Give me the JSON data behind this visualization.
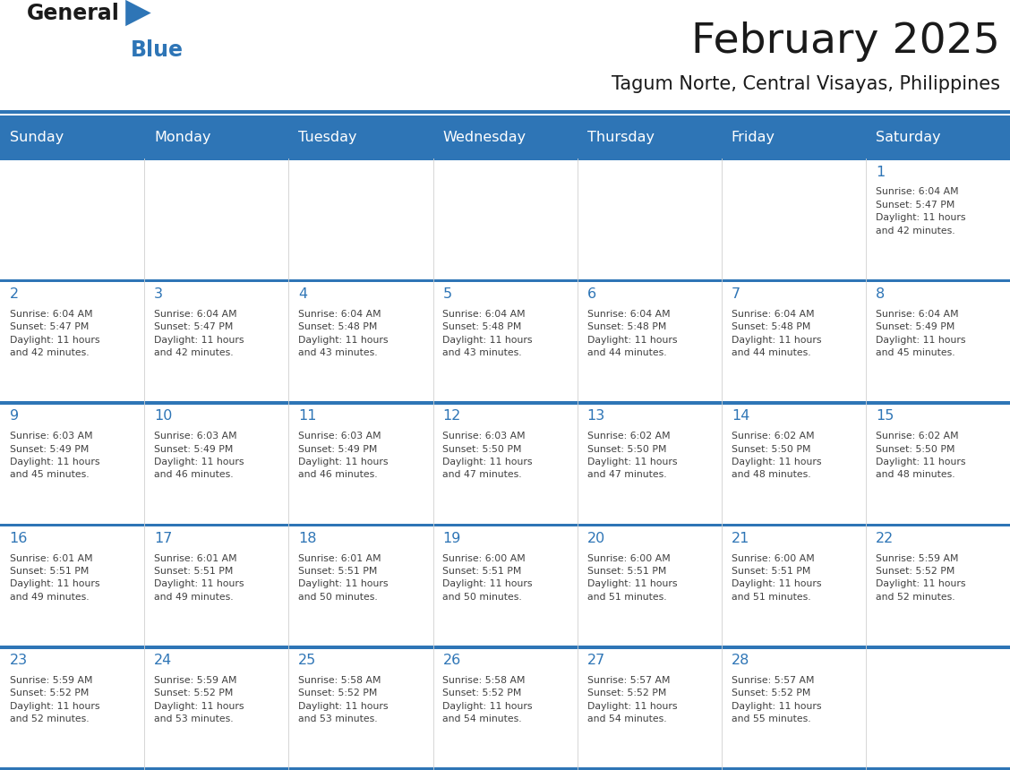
{
  "title": "February 2025",
  "subtitle": "Tagum Norte, Central Visayas, Philippines",
  "days_of_week": [
    "Sunday",
    "Monday",
    "Tuesday",
    "Wednesday",
    "Thursday",
    "Friday",
    "Saturday"
  ],
  "header_bg": "#2E75B6",
  "header_text": "#FFFFFF",
  "cell_border": "#2E75B6",
  "day_number_color": "#2E75B6",
  "info_text_color": "#404040",
  "title_color": "#1A1A1A",
  "subtitle_color": "#1A1A1A",
  "logo_general_color": "#1A1A1A",
  "logo_blue_color": "#2E75B6",
  "logo_triangle_color": "#2E75B6",
  "calendar_data": [
    [
      {
        "day": null,
        "info": null
      },
      {
        "day": null,
        "info": null
      },
      {
        "day": null,
        "info": null
      },
      {
        "day": null,
        "info": null
      },
      {
        "day": null,
        "info": null
      },
      {
        "day": null,
        "info": null
      },
      {
        "day": 1,
        "info": "Sunrise: 6:04 AM\nSunset: 5:47 PM\nDaylight: 11 hours\nand 42 minutes."
      }
    ],
    [
      {
        "day": 2,
        "info": "Sunrise: 6:04 AM\nSunset: 5:47 PM\nDaylight: 11 hours\nand 42 minutes."
      },
      {
        "day": 3,
        "info": "Sunrise: 6:04 AM\nSunset: 5:47 PM\nDaylight: 11 hours\nand 42 minutes."
      },
      {
        "day": 4,
        "info": "Sunrise: 6:04 AM\nSunset: 5:48 PM\nDaylight: 11 hours\nand 43 minutes."
      },
      {
        "day": 5,
        "info": "Sunrise: 6:04 AM\nSunset: 5:48 PM\nDaylight: 11 hours\nand 43 minutes."
      },
      {
        "day": 6,
        "info": "Sunrise: 6:04 AM\nSunset: 5:48 PM\nDaylight: 11 hours\nand 44 minutes."
      },
      {
        "day": 7,
        "info": "Sunrise: 6:04 AM\nSunset: 5:48 PM\nDaylight: 11 hours\nand 44 minutes."
      },
      {
        "day": 8,
        "info": "Sunrise: 6:04 AM\nSunset: 5:49 PM\nDaylight: 11 hours\nand 45 minutes."
      }
    ],
    [
      {
        "day": 9,
        "info": "Sunrise: 6:03 AM\nSunset: 5:49 PM\nDaylight: 11 hours\nand 45 minutes."
      },
      {
        "day": 10,
        "info": "Sunrise: 6:03 AM\nSunset: 5:49 PM\nDaylight: 11 hours\nand 46 minutes."
      },
      {
        "day": 11,
        "info": "Sunrise: 6:03 AM\nSunset: 5:49 PM\nDaylight: 11 hours\nand 46 minutes."
      },
      {
        "day": 12,
        "info": "Sunrise: 6:03 AM\nSunset: 5:50 PM\nDaylight: 11 hours\nand 47 minutes."
      },
      {
        "day": 13,
        "info": "Sunrise: 6:02 AM\nSunset: 5:50 PM\nDaylight: 11 hours\nand 47 minutes."
      },
      {
        "day": 14,
        "info": "Sunrise: 6:02 AM\nSunset: 5:50 PM\nDaylight: 11 hours\nand 48 minutes."
      },
      {
        "day": 15,
        "info": "Sunrise: 6:02 AM\nSunset: 5:50 PM\nDaylight: 11 hours\nand 48 minutes."
      }
    ],
    [
      {
        "day": 16,
        "info": "Sunrise: 6:01 AM\nSunset: 5:51 PM\nDaylight: 11 hours\nand 49 minutes."
      },
      {
        "day": 17,
        "info": "Sunrise: 6:01 AM\nSunset: 5:51 PM\nDaylight: 11 hours\nand 49 minutes."
      },
      {
        "day": 18,
        "info": "Sunrise: 6:01 AM\nSunset: 5:51 PM\nDaylight: 11 hours\nand 50 minutes."
      },
      {
        "day": 19,
        "info": "Sunrise: 6:00 AM\nSunset: 5:51 PM\nDaylight: 11 hours\nand 50 minutes."
      },
      {
        "day": 20,
        "info": "Sunrise: 6:00 AM\nSunset: 5:51 PM\nDaylight: 11 hours\nand 51 minutes."
      },
      {
        "day": 21,
        "info": "Sunrise: 6:00 AM\nSunset: 5:51 PM\nDaylight: 11 hours\nand 51 minutes."
      },
      {
        "day": 22,
        "info": "Sunrise: 5:59 AM\nSunset: 5:52 PM\nDaylight: 11 hours\nand 52 minutes."
      }
    ],
    [
      {
        "day": 23,
        "info": "Sunrise: 5:59 AM\nSunset: 5:52 PM\nDaylight: 11 hours\nand 52 minutes."
      },
      {
        "day": 24,
        "info": "Sunrise: 5:59 AM\nSunset: 5:52 PM\nDaylight: 11 hours\nand 53 minutes."
      },
      {
        "day": 25,
        "info": "Sunrise: 5:58 AM\nSunset: 5:52 PM\nDaylight: 11 hours\nand 53 minutes."
      },
      {
        "day": 26,
        "info": "Sunrise: 5:58 AM\nSunset: 5:52 PM\nDaylight: 11 hours\nand 54 minutes."
      },
      {
        "day": 27,
        "info": "Sunrise: 5:57 AM\nSunset: 5:52 PM\nDaylight: 11 hours\nand 54 minutes."
      },
      {
        "day": 28,
        "info": "Sunrise: 5:57 AM\nSunset: 5:52 PM\nDaylight: 11 hours\nand 55 minutes."
      },
      {
        "day": null,
        "info": null
      }
    ]
  ]
}
